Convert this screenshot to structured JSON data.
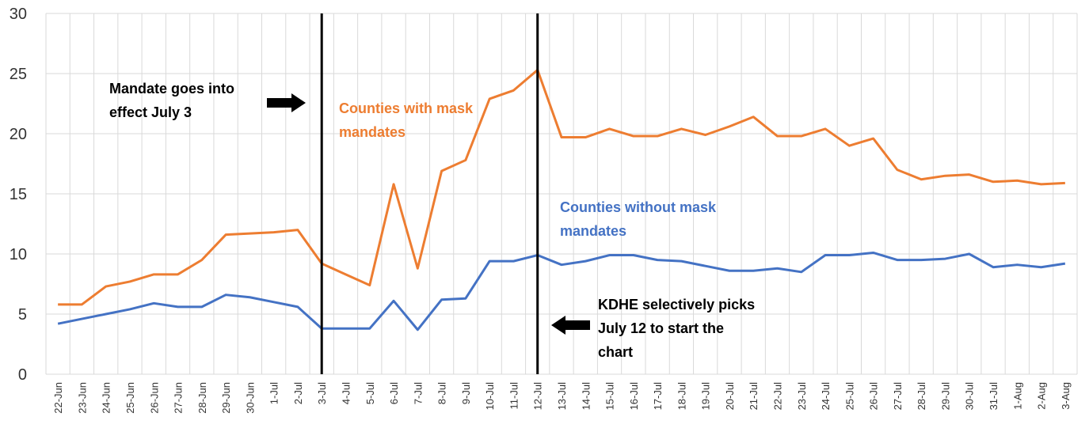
{
  "chart_data": {
    "type": "line",
    "categories": [
      "22-Jun",
      "23-Jun",
      "24-Jun",
      "25-Jun",
      "26-Jun",
      "27-Jun",
      "28-Jun",
      "29-Jun",
      "30-Jun",
      "1-Jul",
      "2-Jul",
      "3-Jul",
      "4-Jul",
      "5-Jul",
      "6-Jul",
      "7-Jul",
      "8-Jul",
      "9-Jul",
      "10-Jul",
      "11-Jul",
      "12-Jul",
      "13-Jul",
      "14-Jul",
      "15-Jul",
      "16-Jul",
      "17-Jul",
      "18-Jul",
      "19-Jul",
      "20-Jul",
      "21-Jul",
      "22-Jul",
      "23-Jul",
      "24-Jul",
      "25-Jul",
      "26-Jul",
      "27-Jul",
      "28-Jul",
      "29-Jul",
      "30-Jul",
      "31-Jul",
      "1-Aug",
      "2-Aug",
      "3-Aug"
    ],
    "series": [
      {
        "name": "Counties with mask mandates",
        "color": "#ed7d31",
        "values": [
          5.8,
          5.8,
          7.3,
          7.7,
          8.3,
          8.3,
          9.5,
          11.6,
          11.7,
          11.8,
          12.0,
          9.2,
          8.3,
          7.4,
          15.8,
          8.8,
          16.9,
          17.8,
          22.9,
          23.6,
          25.3,
          19.7,
          19.7,
          20.4,
          19.8,
          19.8,
          20.4,
          19.9,
          20.6,
          21.4,
          19.8,
          19.8,
          20.4,
          19.0,
          19.6,
          17.0,
          16.2,
          16.5,
          16.6,
          16.0,
          16.1,
          15.8,
          15.9
        ]
      },
      {
        "name": "Counties without mask mandates",
        "color": "#4472c4",
        "values": [
          4.2,
          4.6,
          5.0,
          5.4,
          5.9,
          5.6,
          5.6,
          6.6,
          6.4,
          6.0,
          5.6,
          3.8,
          3.8,
          3.8,
          6.1,
          3.7,
          6.2,
          6.3,
          9.4,
          9.4,
          9.9,
          9.1,
          9.4,
          9.9,
          9.9,
          9.5,
          9.4,
          9.0,
          8.6,
          8.6,
          8.8,
          8.5,
          9.9,
          9.9,
          10.1,
          9.5,
          9.5,
          9.6,
          10.0,
          8.9,
          9.1,
          8.9,
          9.2
        ]
      }
    ],
    "ylim": [
      0,
      30
    ],
    "yticks": [
      0,
      5,
      10,
      15,
      20,
      25,
      30
    ],
    "grid": true,
    "annotations": [
      "Mandate goes into effect July 3",
      "KDHE selectively picks July 12 to start the chart"
    ]
  }
}
